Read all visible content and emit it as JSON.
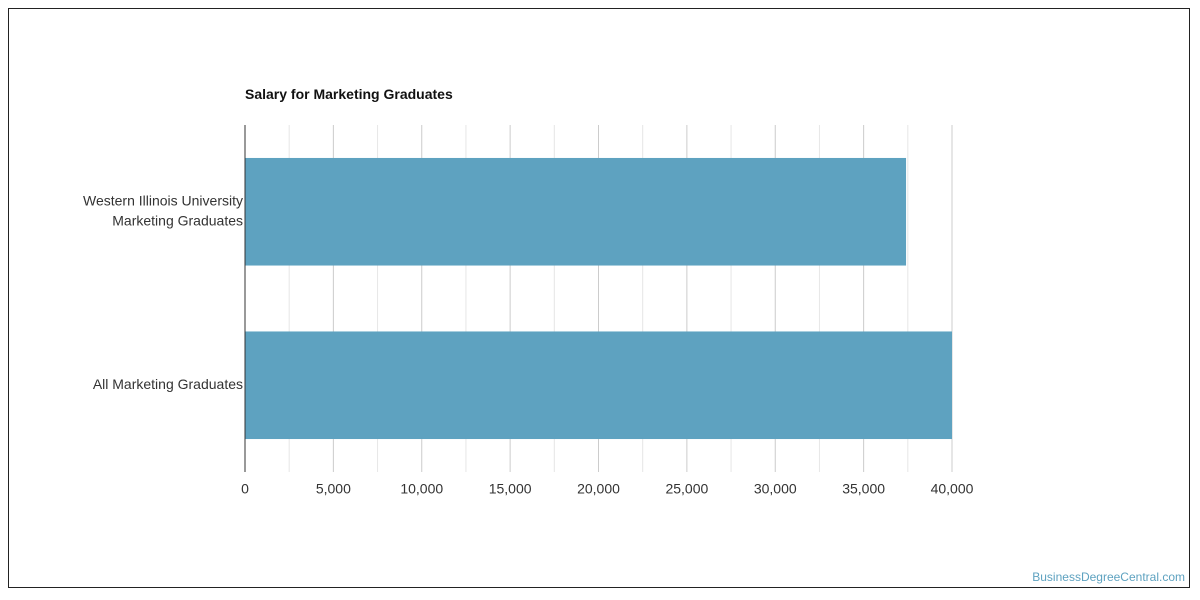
{
  "chart_data": {
    "type": "bar",
    "orientation": "horizontal",
    "title": "Salary for Marketing Graduates",
    "categories": [
      "Western Illinois University Marketing Graduates",
      "All Marketing Graduates"
    ],
    "category_lines": [
      [
        "Western Illinois University",
        "Marketing Graduates"
      ],
      [
        "All Marketing Graduates"
      ]
    ],
    "values": [
      37400,
      40000
    ],
    "xlim": [
      0,
      40000
    ],
    "xticks": [
      0,
      5000,
      10000,
      15000,
      20000,
      25000,
      30000,
      35000,
      40000
    ],
    "xtick_labels": [
      "0",
      "5,000",
      "10,000",
      "15,000",
      "20,000",
      "25,000",
      "30,000",
      "35,000",
      "40,000"
    ],
    "grid": true,
    "bar_color": "#5ea2c0"
  },
  "watermark": "BusinessDegreeCentral.com"
}
